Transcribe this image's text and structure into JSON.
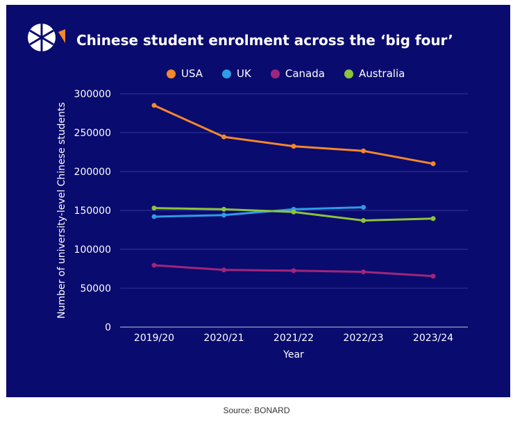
{
  "source": "Source: BONARD",
  "colors": {
    "background": "#0a0b6e",
    "usa": "#f5882a",
    "uk": "#2e9ce6",
    "canada": "#a0267c",
    "australia": "#8cc43c"
  },
  "chart_data": {
    "type": "line",
    "title": "Chinese student enrolment across the ‘big four’",
    "xlabel": "Year",
    "ylabel": "Number of university-level Chinese students",
    "categories": [
      "2019/20",
      "2020/21",
      "2021/22",
      "2022/23",
      "2023/24"
    ],
    "ylim": [
      0,
      300000
    ],
    "yticks": [
      "0",
      "50000",
      "100000",
      "150000",
      "200000",
      "250000",
      "300000"
    ],
    "grid": true,
    "legend_position": "top",
    "series": [
      {
        "name": "USA",
        "color": "#f5882a",
        "values": [
          285000,
          244500,
          232500,
          226500,
          210000
        ]
      },
      {
        "name": "UK",
        "color": "#2e9ce6",
        "values": [
          142000,
          144000,
          151500,
          154000,
          null
        ]
      },
      {
        "name": "Canada",
        "color": "#a0267c",
        "values": [
          79500,
          73500,
          72500,
          71000,
          65500
        ]
      },
      {
        "name": "Australia",
        "color": "#8cc43c",
        "values": [
          153000,
          151500,
          148000,
          137000,
          139500
        ]
      }
    ]
  }
}
